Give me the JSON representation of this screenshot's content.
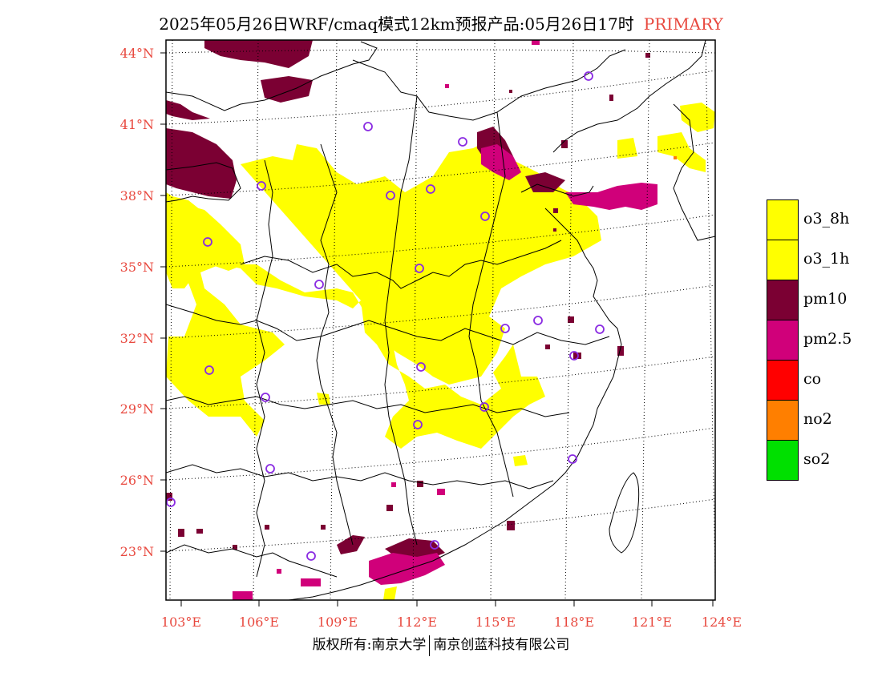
{
  "header": {
    "title": "2025年05月26日WRF/cmaq模式12km预报产品:05月26日17时",
    "badge": "PRIMARY"
  },
  "axes": {
    "lat_labels": [
      "44°N",
      "41°N",
      "38°N",
      "35°N",
      "32°N",
      "29°N",
      "26°N",
      "23°N"
    ],
    "lon_labels": [
      "103°E",
      "106°E",
      "109°E",
      "112°E",
      "115°E",
      "118°E",
      "121°E",
      "124°E"
    ]
  },
  "legend": {
    "items": [
      {
        "label": "o3_8h",
        "color": "#ffff00"
      },
      {
        "label": "o3_1h",
        "color": "#ffff00"
      },
      {
        "label": "pm10",
        "color": "#7b0033"
      },
      {
        "label": "pm2.5",
        "color": "#d0007a"
      },
      {
        "label": "co",
        "color": "#ff0000"
      },
      {
        "label": "no2",
        "color": "#ff7f00"
      },
      {
        "label": "so2",
        "color": "#00e000"
      }
    ]
  },
  "footer": {
    "left": "版权所有:南京大学",
    "right": "南京创蓝科技有限公司"
  },
  "colors": {
    "tick_label": "#e8483e",
    "o3": "#ffff00",
    "pm10": "#7b0033",
    "pm25": "#d0007a",
    "station_marker": "#8a2be2"
  }
}
